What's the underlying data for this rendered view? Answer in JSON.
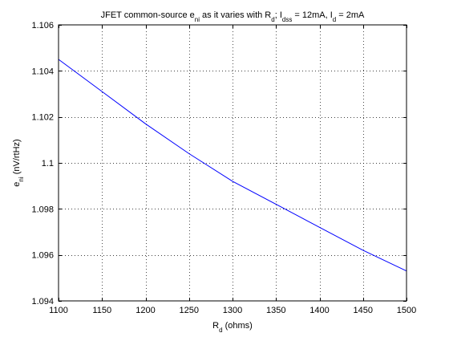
{
  "chart_data": {
    "type": "line",
    "title": {
      "parts": [
        {
          "t": "JFET common-source e"
        },
        {
          "t": "ni",
          "sub": true
        },
        {
          "t": " as it varies with R"
        },
        {
          "t": "d",
          "sub": true
        },
        {
          "t": "; I"
        },
        {
          "t": "dss",
          "sub": true
        },
        {
          "t": " = 12mA, I"
        },
        {
          "t": "d",
          "sub": true
        },
        {
          "t": " = 2mA"
        }
      ]
    },
    "xlabel": {
      "parts": [
        {
          "t": "R"
        },
        {
          "t": "d",
          "sub": true
        },
        {
          "t": " (ohms)"
        }
      ]
    },
    "ylabel": {
      "parts": [
        {
          "t": "e"
        },
        {
          "t": "ni",
          "sub": true
        },
        {
          "t": " (nV/rtHz)"
        }
      ]
    },
    "xlim": [
      1100,
      1500
    ],
    "ylim": [
      1.094,
      1.106
    ],
    "xticks": [
      1100,
      1150,
      1200,
      1250,
      1300,
      1350,
      1400,
      1450,
      1500
    ],
    "yticks": [
      1.094,
      1.096,
      1.098,
      1.1,
      1.102,
      1.104,
      1.106
    ],
    "xtick_labels": [
      "1100",
      "1150",
      "1200",
      "1250",
      "1300",
      "1350",
      "1400",
      "1450",
      "1500"
    ],
    "ytick_labels": [
      "1.094",
      "1.096",
      "1.098",
      "1.1",
      "1.102",
      "1.104",
      "1.106"
    ],
    "grid": true,
    "grid_style": "dotted",
    "line_color": "#0000ff",
    "series": [
      {
        "x": [
          1100,
          1150,
          1200,
          1250,
          1300,
          1350,
          1400,
          1450,
          1500
        ],
        "values": [
          1.1045,
          1.1031,
          1.1017,
          1.1004,
          1.0992,
          1.0982,
          1.0972,
          1.0962,
          1.0953
        ]
      }
    ]
  }
}
